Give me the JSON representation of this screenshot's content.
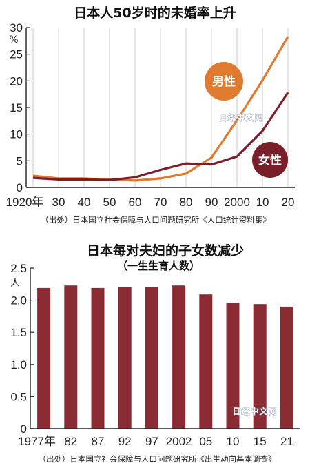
{
  "chart_data": [
    {
      "type": "line",
      "title": "日本人50岁时的未婚率上升",
      "ylabel": "%",
      "ylim": [
        0,
        30
      ],
      "yticks": [
        "0",
        "5",
        "10",
        "15",
        "20",
        "25",
        "30"
      ],
      "categories": [
        "1920年",
        "30",
        "40",
        "50",
        "60",
        "70",
        "80",
        "90",
        "2000",
        "10",
        "20"
      ],
      "x": [
        1920,
        1930,
        1940,
        1950,
        1960,
        1970,
        1980,
        1990,
        2000,
        2010,
        2020
      ],
      "grid": "vertical",
      "series": [
        {
          "name": "男性",
          "color": "#e07a2e",
          "values": [
            2.2,
            1.7,
            1.7,
            1.5,
            1.3,
            1.7,
            2.6,
            5.6,
            12.6,
            20.1,
            28.3
          ]
        },
        {
          "name": "女性",
          "color": "#7a1f2a",
          "values": [
            1.8,
            1.5,
            1.5,
            1.4,
            1.9,
            3.3,
            4.5,
            4.3,
            5.8,
            10.6,
            17.8
          ]
        }
      ],
      "source": "（出处）日本国立社会保障与人口问题研究所《人口统计资料集》",
      "watermark": "日经中文网"
    },
    {
      "type": "bar",
      "title": "日本每对夫妇的子女数减少",
      "subtitle": "（一生生育人数）",
      "ylabel": "人",
      "ylim": [
        0,
        2.5
      ],
      "yticks": [
        "0",
        "0.5",
        "1.0",
        "1.5",
        "2.0",
        "2.5"
      ],
      "categories": [
        "1977年",
        "82",
        "87",
        "92",
        "97",
        "2002",
        "05",
        "10",
        "15",
        "21"
      ],
      "values": [
        2.19,
        2.23,
        2.19,
        2.21,
        2.21,
        2.23,
        2.09,
        1.96,
        1.94,
        1.9
      ],
      "color": "#8b2b33",
      "source": "（出处）日本国立社会保障与人口问题研究所《出生动向基本调查》",
      "watermark": "日经中文网"
    }
  ]
}
